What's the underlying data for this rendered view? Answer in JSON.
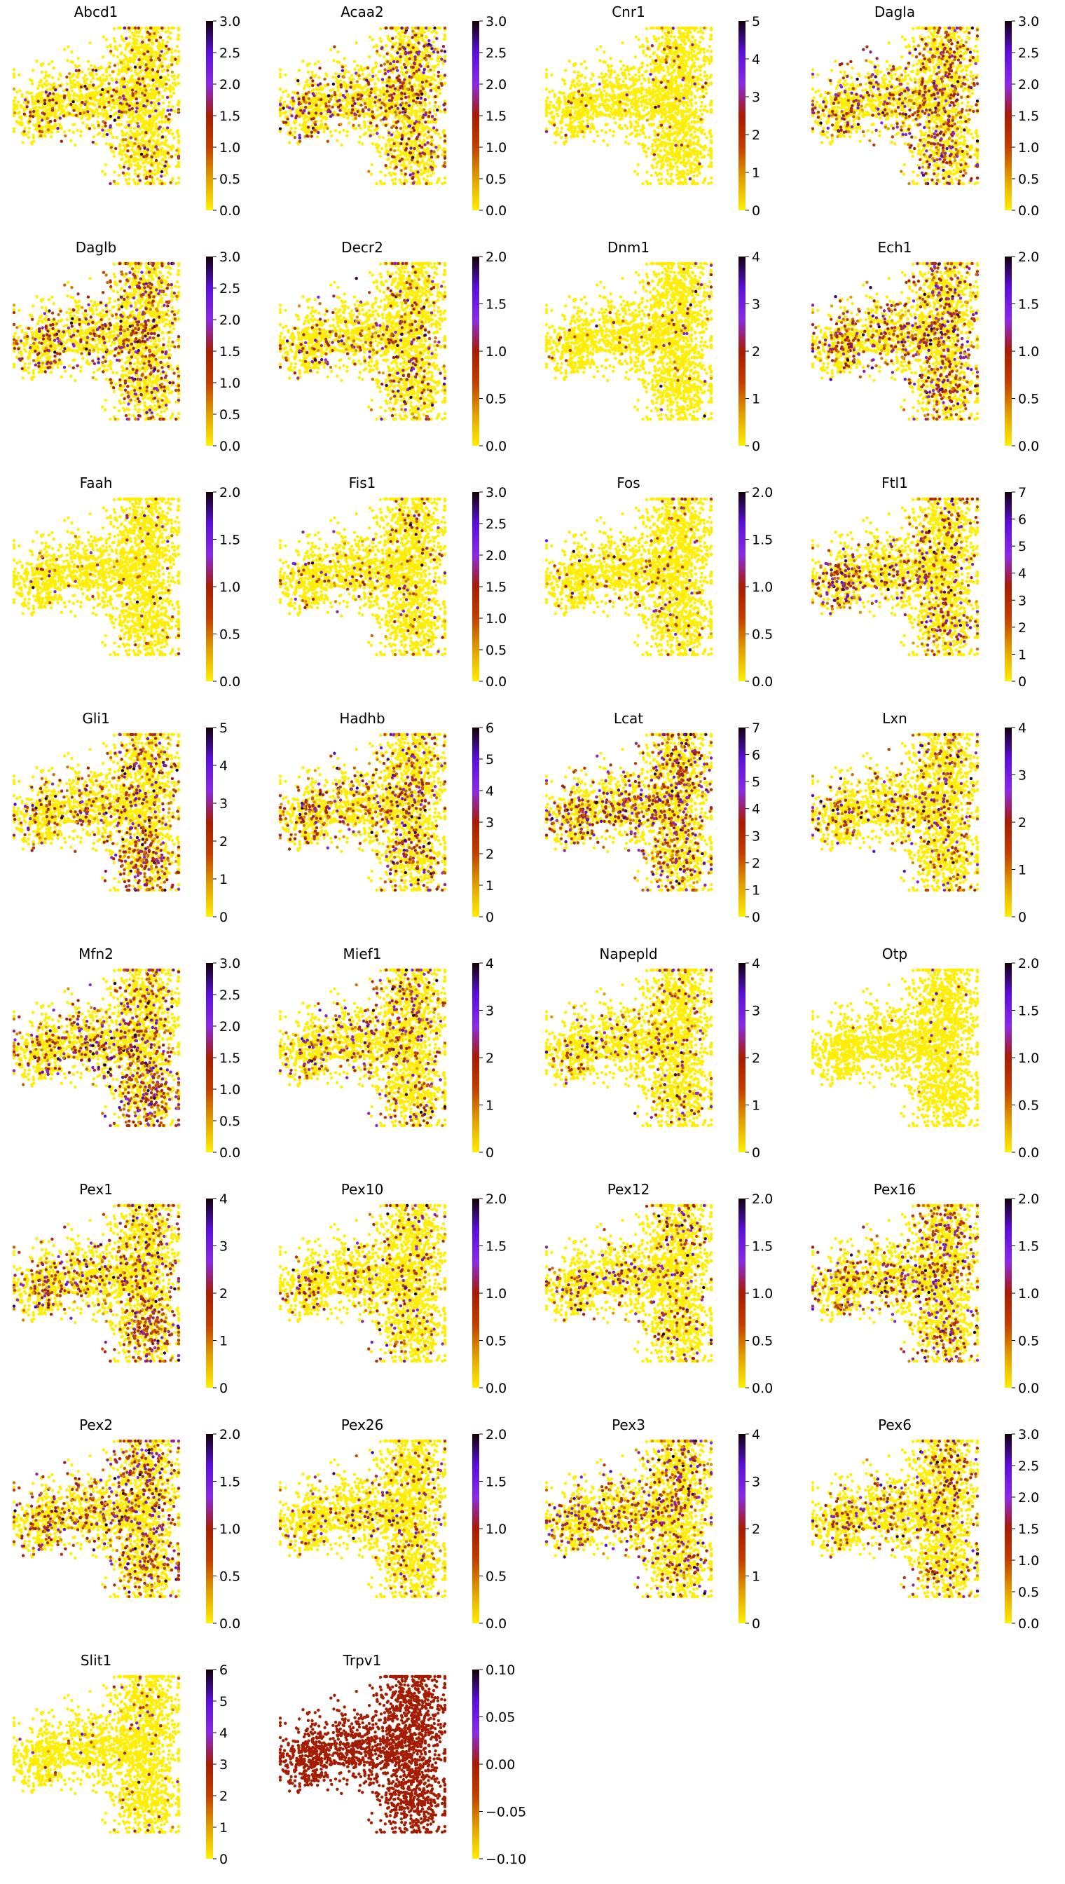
{
  "chart_data": {
    "type": "scatter",
    "colormap": [
      "#ffee00",
      "#e0a000",
      "#c04000",
      "#a51d00",
      "#8a2be2",
      "#5b10d8",
      "#14000a"
    ],
    "panels": [
      {
        "title": "Abcd1",
        "ticks": [
          "0.0",
          "0.5",
          "1.0",
          "1.5",
          "2.0",
          "2.5",
          "3.0"
        ],
        "vmax": 3,
        "intensity": 0.25,
        "hot": "mixed"
      },
      {
        "title": "Acaa2",
        "ticks": [
          "0.0",
          "0.5",
          "1.0",
          "1.5",
          "2.0",
          "2.5",
          "3.0"
        ],
        "vmax": 3,
        "intensity": 0.45,
        "hot": "mixed"
      },
      {
        "title": "Cnr1",
        "ticks": [
          "0",
          "1",
          "2",
          "3",
          "4",
          "5"
        ],
        "vmax": 5,
        "intensity": 0.05,
        "hot": "top"
      },
      {
        "title": "Dagla",
        "ticks": [
          "0.0",
          "0.5",
          "1.0",
          "1.5",
          "2.0",
          "2.5",
          "3.0"
        ],
        "vmax": 3,
        "intensity": 0.55,
        "hot": "mixed"
      },
      {
        "title": "Daglb",
        "ticks": [
          "0.0",
          "0.5",
          "1.0",
          "1.5",
          "2.0",
          "2.5",
          "3.0"
        ],
        "vmax": 3,
        "intensity": 0.45,
        "hot": "mixed"
      },
      {
        "title": "Decr2",
        "ticks": [
          "0.0",
          "0.5",
          "1.0",
          "1.5",
          "2.0"
        ],
        "vmax": 2,
        "intensity": 0.3,
        "hot": "mixed"
      },
      {
        "title": "Dnm1",
        "ticks": [
          "0",
          "1",
          "2",
          "3",
          "4"
        ],
        "vmax": 4,
        "intensity": 0.04,
        "hot": "top"
      },
      {
        "title": "Ech1",
        "ticks": [
          "0.0",
          "0.5",
          "1.0",
          "1.5",
          "2.0"
        ],
        "vmax": 2,
        "intensity": 0.55,
        "hot": "mixed"
      },
      {
        "title": "Faah",
        "ticks": [
          "0.0",
          "0.5",
          "1.0",
          "1.5",
          "2.0"
        ],
        "vmax": 2,
        "intensity": 0.08,
        "hot": "mixed"
      },
      {
        "title": "Fis1",
        "ticks": [
          "0.0",
          "0.5",
          "1.0",
          "1.5",
          "2.0",
          "2.5",
          "3.0"
        ],
        "vmax": 3,
        "intensity": 0.15,
        "hot": "mixed"
      },
      {
        "title": "Fos",
        "ticks": [
          "0.0",
          "0.5",
          "1.0",
          "1.5",
          "2.0"
        ],
        "vmax": 2,
        "intensity": 0.1,
        "hot": "mixed"
      },
      {
        "title": "Ftl1",
        "ticks": [
          "0",
          "1",
          "2",
          "3",
          "4",
          "5",
          "6",
          "7"
        ],
        "vmax": 7,
        "intensity": 0.35,
        "hot": "left"
      },
      {
        "title": "Gli1",
        "ticks": [
          "0",
          "1",
          "2",
          "3",
          "4",
          "5"
        ],
        "vmax": 5,
        "intensity": 0.4,
        "hot": "bottom"
      },
      {
        "title": "Hadhb",
        "ticks": [
          "0",
          "1",
          "2",
          "3",
          "4",
          "5",
          "6"
        ],
        "vmax": 6,
        "intensity": 0.45,
        "hot": "mixed"
      },
      {
        "title": "Lcat",
        "ticks": [
          "0",
          "1",
          "2",
          "3",
          "4",
          "5",
          "6",
          "7"
        ],
        "vmax": 7,
        "intensity": 0.6,
        "hot": "mixed"
      },
      {
        "title": "Lxn",
        "ticks": [
          "0",
          "1",
          "2",
          "3",
          "4"
        ],
        "vmax": 4,
        "intensity": 0.35,
        "hot": "mixed"
      },
      {
        "title": "Mfn2",
        "ticks": [
          "0.0",
          "0.5",
          "1.0",
          "1.5",
          "2.0",
          "2.5",
          "3.0"
        ],
        "vmax": 3,
        "intensity": 0.45,
        "hot": "bottom"
      },
      {
        "title": "Mief1",
        "ticks": [
          "0",
          "1",
          "2",
          "3",
          "4"
        ],
        "vmax": 4,
        "intensity": 0.35,
        "hot": "mixed"
      },
      {
        "title": "Napepld",
        "ticks": [
          "0",
          "1",
          "2",
          "3",
          "4"
        ],
        "vmax": 4,
        "intensity": 0.2,
        "hot": "mixed"
      },
      {
        "title": "Otp",
        "ticks": [
          "0.0",
          "0.5",
          "1.0",
          "1.5",
          "2.0"
        ],
        "vmax": 2,
        "intensity": 0.02,
        "hot": "mixed"
      },
      {
        "title": "Pex1",
        "ticks": [
          "0",
          "1",
          "2",
          "3",
          "4"
        ],
        "vmax": 4,
        "intensity": 0.4,
        "hot": "bottom"
      },
      {
        "title": "Pex10",
        "ticks": [
          "0.0",
          "0.5",
          "1.0",
          "1.5",
          "2.0"
        ],
        "vmax": 2,
        "intensity": 0.2,
        "hot": "mixed"
      },
      {
        "title": "Pex12",
        "ticks": [
          "0.0",
          "0.5",
          "1.0",
          "1.5",
          "2.0"
        ],
        "vmax": 2,
        "intensity": 0.25,
        "hot": "mixed"
      },
      {
        "title": "Pex16",
        "ticks": [
          "0.0",
          "0.5",
          "1.0",
          "1.5",
          "2.0"
        ],
        "vmax": 2,
        "intensity": 0.45,
        "hot": "mixed"
      },
      {
        "title": "Pex2",
        "ticks": [
          "0.0",
          "0.5",
          "1.0",
          "1.5",
          "2.0"
        ],
        "vmax": 2,
        "intensity": 0.55,
        "hot": "mixed"
      },
      {
        "title": "Pex26",
        "ticks": [
          "0.0",
          "0.5",
          "1.0",
          "1.5",
          "2.0"
        ],
        "vmax": 2,
        "intensity": 0.2,
        "hot": "mixed"
      },
      {
        "title": "Pex3",
        "ticks": [
          "0",
          "1",
          "2",
          "3",
          "4"
        ],
        "vmax": 4,
        "intensity": 0.45,
        "hot": "mixed"
      },
      {
        "title": "Pex6",
        "ticks": [
          "0.0",
          "0.5",
          "1.0",
          "1.5",
          "2.0",
          "2.5",
          "3.0"
        ],
        "vmax": 3,
        "intensity": 0.35,
        "hot": "mixed"
      },
      {
        "title": "Slit1",
        "ticks": [
          "0",
          "1",
          "2",
          "3",
          "4",
          "5",
          "6"
        ],
        "vmax": 6,
        "intensity": 0.05,
        "hot": "top"
      },
      {
        "title": "Trpv1",
        "ticks": [
          "−0.10",
          "−0.05",
          "0.00",
          "0.05",
          "0.10"
        ],
        "vmax": 0.1,
        "intensity": 1.0,
        "hot": "uniform"
      }
    ]
  }
}
